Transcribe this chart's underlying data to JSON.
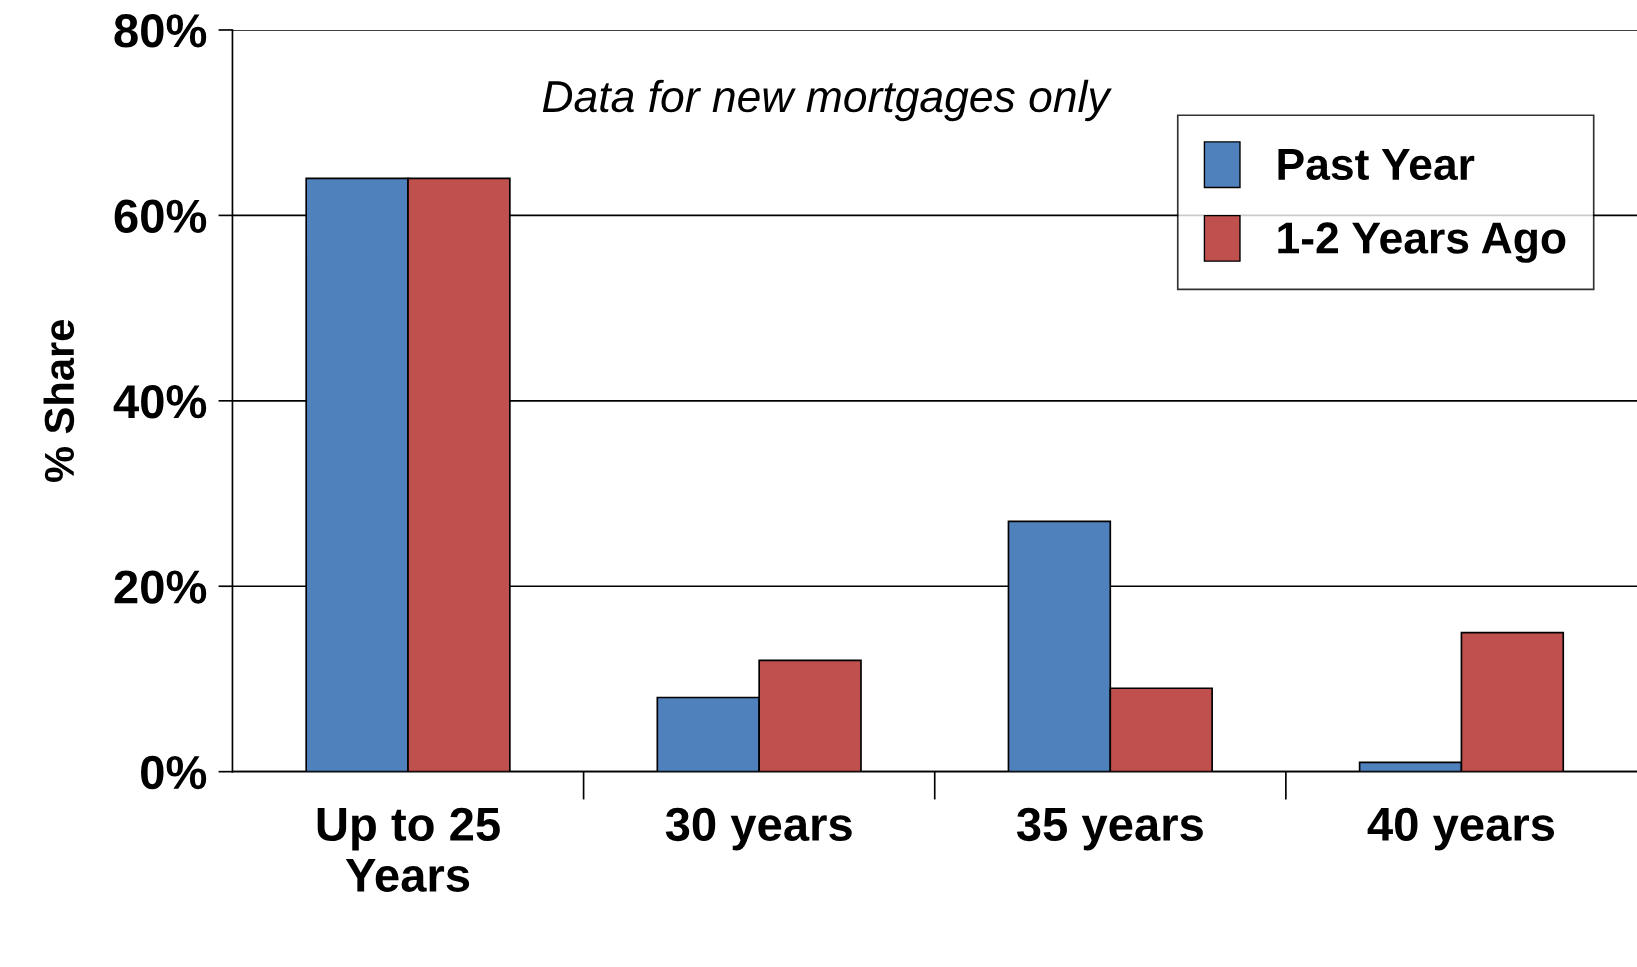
{
  "chart_data": {
    "type": "bar",
    "ylabel": "% Share",
    "categories": [
      "Up to 25\nYears",
      "30 years",
      "35 years",
      "40 years"
    ],
    "series": [
      {
        "name": "Past Year",
        "color": "#4f81bd",
        "values": [
          64,
          8,
          27,
          1
        ]
      },
      {
        "name": "1-2 Years Ago",
        "color": "#c0504d",
        "values": [
          64,
          12,
          9,
          15
        ]
      }
    ],
    "ylim": [
      0,
      80
    ],
    "yticks": [
      {
        "value": 0,
        "label": "0%"
      },
      {
        "value": 20,
        "label": "20%"
      },
      {
        "value": 40,
        "label": "40%"
      },
      {
        "value": 60,
        "label": "60%"
      },
      {
        "value": 80,
        "label": "80%"
      }
    ],
    "grid": "y",
    "legend": "top right",
    "annotations": [
      "Data for new mortgages only"
    ]
  }
}
